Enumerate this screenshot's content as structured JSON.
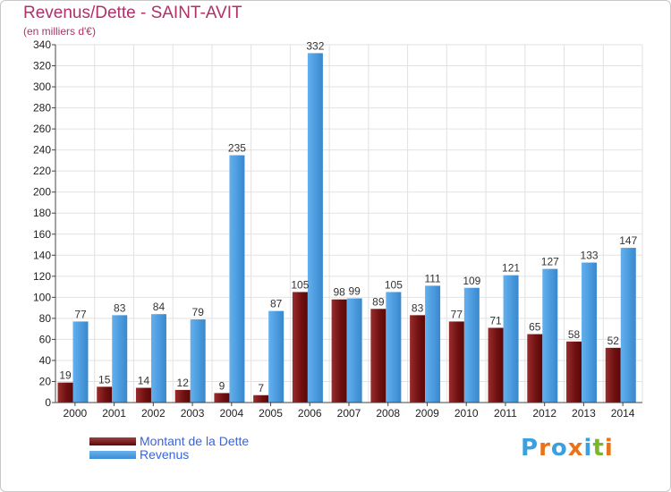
{
  "chart_data": {
    "type": "bar",
    "title": "Revenus/Dette - SAINT-AVIT",
    "subtitle": "(en milliers d'€)",
    "categories": [
      "2000",
      "2001",
      "2002",
      "2003",
      "2004",
      "2005",
      "2006",
      "2007",
      "2008",
      "2009",
      "2010",
      "2011",
      "2012",
      "2013",
      "2014"
    ],
    "series": [
      {
        "name": "Montant de la Dette",
        "color": "#7a1a1a",
        "values": [
          19,
          15,
          14,
          12,
          9,
          7,
          105,
          98,
          89,
          83,
          77,
          71,
          65,
          58,
          52
        ]
      },
      {
        "name": "Revenus",
        "color": "#4a9fe0",
        "values": [
          77,
          83,
          84,
          79,
          235,
          87,
          332,
          99,
          105,
          111,
          109,
          121,
          127,
          133,
          147
        ]
      }
    ],
    "ylim": [
      0,
      340
    ],
    "yticks": [
      0,
      20,
      40,
      60,
      80,
      100,
      120,
      140,
      160,
      180,
      200,
      220,
      240,
      260,
      280,
      300,
      320,
      340
    ],
    "grid": true,
    "legend_position": "bottom-left"
  },
  "logo": {
    "text": "Proxiti",
    "letter_colors": [
      "#3aa0e0",
      "#e8731a",
      "#3aa0e0",
      "#e8731a",
      "#3aa0e0",
      "#7ab828",
      "#e8731a"
    ]
  }
}
